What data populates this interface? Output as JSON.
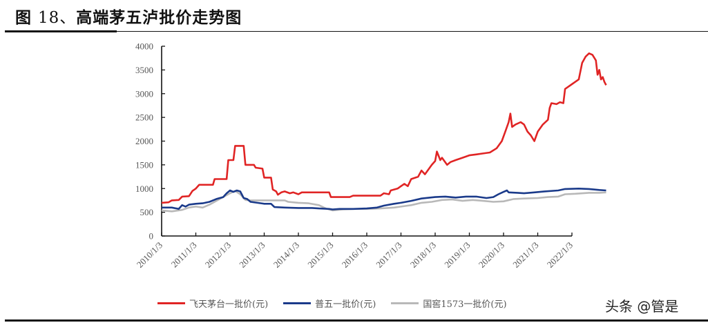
{
  "figure": {
    "title_prefix": "图",
    "title_number": "18、",
    "title_text": "高端茅五泸批价走势图"
  },
  "watermark": "头条 @管是",
  "chart_data": {
    "type": "line",
    "title": "高端茅五泸批价走势图",
    "xlabel": "",
    "ylabel": "",
    "ylim": [
      0,
      4000
    ],
    "yticks": [
      0,
      500,
      1000,
      1500,
      2000,
      2500,
      3000,
      3500,
      4000
    ],
    "xticks": [
      "2010/1/3",
      "2011/1/3",
      "2012/1/3",
      "2013/1/3",
      "2014/1/3",
      "2015/1/3",
      "2016/1/3",
      "2017/1/3",
      "2018/1/3",
      "2019/1/3",
      "2020/1/3",
      "2021/1/3",
      "2022/1/3"
    ],
    "grid": false,
    "legend_position": "bottom",
    "series": [
      {
        "name": "飞天茅台一批价(元)",
        "color": "#e02424",
        "points": [
          [
            2010.0,
            700
          ],
          [
            2010.2,
            710
          ],
          [
            2010.3,
            750
          ],
          [
            2010.5,
            760
          ],
          [
            2010.6,
            830
          ],
          [
            2010.8,
            840
          ],
          [
            2010.9,
            950
          ],
          [
            2011.0,
            1000
          ],
          [
            2011.1,
            1080
          ],
          [
            2011.5,
            1080
          ],
          [
            2011.55,
            1200
          ],
          [
            2011.9,
            1200
          ],
          [
            2011.95,
            1600
          ],
          [
            2012.1,
            1600
          ],
          [
            2012.15,
            1900
          ],
          [
            2012.4,
            1900
          ],
          [
            2012.45,
            1500
          ],
          [
            2012.7,
            1500
          ],
          [
            2012.75,
            1440
          ],
          [
            2012.95,
            1420
          ],
          [
            2013.0,
            1230
          ],
          [
            2013.2,
            1230
          ],
          [
            2013.25,
            980
          ],
          [
            2013.35,
            940
          ],
          [
            2013.4,
            870
          ],
          [
            2013.5,
            920
          ],
          [
            2013.6,
            940
          ],
          [
            2013.75,
            900
          ],
          [
            2013.85,
            920
          ],
          [
            2014.0,
            880
          ],
          [
            2014.1,
            920
          ],
          [
            2014.9,
            920
          ],
          [
            2014.95,
            820
          ],
          [
            2015.5,
            820
          ],
          [
            2015.6,
            850
          ],
          [
            2016.4,
            850
          ],
          [
            2016.5,
            900
          ],
          [
            2016.65,
            880
          ],
          [
            2016.7,
            960
          ],
          [
            2016.9,
            1000
          ],
          [
            2017.0,
            1050
          ],
          [
            2017.1,
            1100
          ],
          [
            2017.2,
            1050
          ],
          [
            2017.3,
            1200
          ],
          [
            2017.5,
            1250
          ],
          [
            2017.6,
            1380
          ],
          [
            2017.7,
            1300
          ],
          [
            2017.9,
            1500
          ],
          [
            2018.0,
            1580
          ],
          [
            2018.05,
            1780
          ],
          [
            2018.15,
            1600
          ],
          [
            2018.2,
            1650
          ],
          [
            2018.35,
            1500
          ],
          [
            2018.45,
            1560
          ],
          [
            2018.6,
            1600
          ],
          [
            2018.8,
            1650
          ],
          [
            2019.0,
            1700
          ],
          [
            2019.2,
            1720
          ],
          [
            2019.4,
            1740
          ],
          [
            2019.6,
            1760
          ],
          [
            2019.8,
            1850
          ],
          [
            2019.95,
            2000
          ],
          [
            2020.05,
            2200
          ],
          [
            2020.15,
            2400
          ],
          [
            2020.2,
            2580
          ],
          [
            2020.25,
            2300
          ],
          [
            2020.35,
            2350
          ],
          [
            2020.5,
            2400
          ],
          [
            2020.6,
            2350
          ],
          [
            2020.7,
            2200
          ],
          [
            2020.8,
            2120
          ],
          [
            2020.9,
            2000
          ],
          [
            2021.0,
            2200
          ],
          [
            2021.15,
            2350
          ],
          [
            2021.3,
            2450
          ],
          [
            2021.35,
            2700
          ],
          [
            2021.4,
            2800
          ],
          [
            2021.55,
            2780
          ],
          [
            2021.65,
            2820
          ],
          [
            2021.75,
            2800
          ],
          [
            2021.8,
            3100
          ],
          [
            2021.9,
            3150
          ],
          [
            2022.0,
            3200
          ],
          [
            2022.1,
            3250
          ],
          [
            2022.2,
            3300
          ],
          [
            2022.3,
            3650
          ],
          [
            2022.4,
            3780
          ],
          [
            2022.5,
            3850
          ],
          [
            2022.6,
            3820
          ],
          [
            2022.7,
            3700
          ],
          [
            2022.75,
            3400
          ],
          [
            2022.8,
            3500
          ],
          [
            2022.85,
            3300
          ],
          [
            2022.9,
            3350
          ],
          [
            2022.95,
            3250
          ],
          [
            2023.0,
            3180
          ]
        ]
      },
      {
        "name": "普五一批价(元)",
        "color": "#1a3a8a",
        "points": [
          [
            2010.0,
            600
          ],
          [
            2010.3,
            600
          ],
          [
            2010.5,
            570
          ],
          [
            2010.6,
            650
          ],
          [
            2010.7,
            620
          ],
          [
            2010.8,
            660
          ],
          [
            2011.0,
            680
          ],
          [
            2011.2,
            690
          ],
          [
            2011.4,
            720
          ],
          [
            2011.6,
            780
          ],
          [
            2011.8,
            820
          ],
          [
            2011.9,
            900
          ],
          [
            2012.0,
            960
          ],
          [
            2012.1,
            930
          ],
          [
            2012.2,
            960
          ],
          [
            2012.3,
            940
          ],
          [
            2012.4,
            800
          ],
          [
            2012.5,
            780
          ],
          [
            2012.6,
            720
          ],
          [
            2012.8,
            700
          ],
          [
            2013.0,
            680
          ],
          [
            2013.2,
            680
          ],
          [
            2013.3,
            610
          ],
          [
            2013.6,
            600
          ],
          [
            2014.0,
            590
          ],
          [
            2014.4,
            590
          ],
          [
            2014.6,
            580
          ],
          [
            2014.9,
            570
          ],
          [
            2015.0,
            560
          ],
          [
            2015.2,
            570
          ],
          [
            2015.6,
            570
          ],
          [
            2016.0,
            580
          ],
          [
            2016.3,
            600
          ],
          [
            2016.5,
            640
          ],
          [
            2016.8,
            680
          ],
          [
            2017.0,
            700
          ],
          [
            2017.3,
            740
          ],
          [
            2017.6,
            790
          ],
          [
            2018.0,
            820
          ],
          [
            2018.3,
            830
          ],
          [
            2018.6,
            810
          ],
          [
            2018.9,
            830
          ],
          [
            2019.2,
            830
          ],
          [
            2019.5,
            800
          ],
          [
            2019.7,
            820
          ],
          [
            2019.85,
            880
          ],
          [
            2020.0,
            930
          ],
          [
            2020.1,
            960
          ],
          [
            2020.15,
            920
          ],
          [
            2020.4,
            910
          ],
          [
            2020.6,
            900
          ],
          [
            2020.9,
            920
          ],
          [
            2021.2,
            940
          ],
          [
            2021.6,
            960
          ],
          [
            2021.8,
            990
          ],
          [
            2022.2,
            1000
          ],
          [
            2022.5,
            990
          ],
          [
            2022.8,
            970
          ],
          [
            2023.0,
            960
          ]
        ]
      },
      {
        "name": "国窖1573一批价(元)",
        "color": "#b8b8b8",
        "points": [
          [
            2010.0,
            540
          ],
          [
            2010.3,
            520
          ],
          [
            2010.6,
            550
          ],
          [
            2010.8,
            600
          ],
          [
            2011.0,
            620
          ],
          [
            2011.2,
            600
          ],
          [
            2011.4,
            660
          ],
          [
            2011.6,
            740
          ],
          [
            2011.8,
            820
          ],
          [
            2012.0,
            900
          ],
          [
            2012.15,
            950
          ],
          [
            2012.3,
            880
          ],
          [
            2012.45,
            760
          ],
          [
            2012.6,
            750
          ],
          [
            2013.0,
            750
          ],
          [
            2013.6,
            750
          ],
          [
            2013.7,
            720
          ],
          [
            2014.0,
            700
          ],
          [
            2014.3,
            690
          ],
          [
            2014.6,
            650
          ],
          [
            2014.8,
            580
          ],
          [
            2015.0,
            540
          ],
          [
            2015.3,
            560
          ],
          [
            2015.6,
            570
          ],
          [
            2016.0,
            570
          ],
          [
            2016.4,
            580
          ],
          [
            2016.8,
            600
          ],
          [
            2017.0,
            620
          ],
          [
            2017.3,
            650
          ],
          [
            2017.6,
            700
          ],
          [
            2017.9,
            720
          ],
          [
            2018.2,
            760
          ],
          [
            2018.5,
            770
          ],
          [
            2018.8,
            740
          ],
          [
            2019.1,
            760
          ],
          [
            2019.4,
            740
          ],
          [
            2019.7,
            720
          ],
          [
            2020.0,
            730
          ],
          [
            2020.3,
            780
          ],
          [
            2020.6,
            790
          ],
          [
            2021.0,
            800
          ],
          [
            2021.3,
            820
          ],
          [
            2021.6,
            830
          ],
          [
            2021.8,
            880
          ],
          [
            2022.1,
            890
          ],
          [
            2022.5,
            910
          ],
          [
            2022.8,
            910
          ],
          [
            2023.0,
            920
          ]
        ]
      }
    ]
  }
}
